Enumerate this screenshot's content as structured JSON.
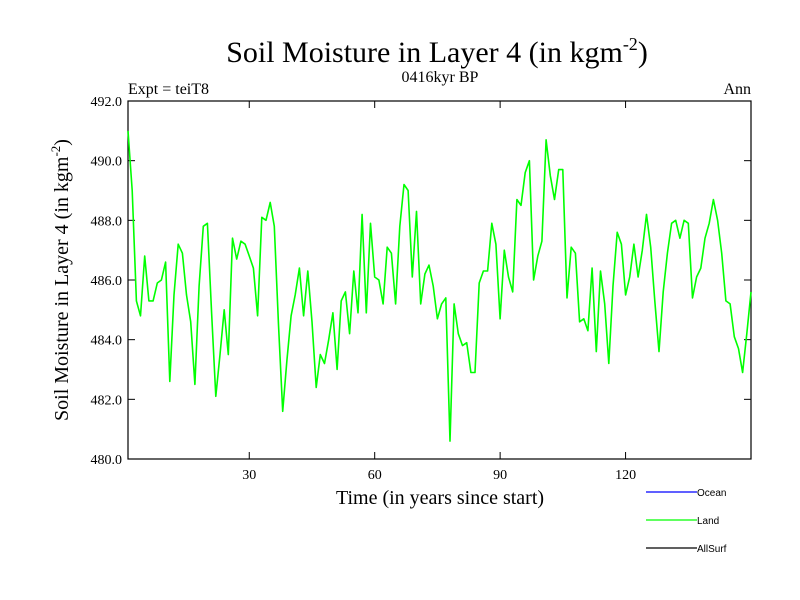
{
  "header": {
    "title_main": "Soil Moisture in Layer 4 (in kgm",
    "title_sup": "-2",
    "title_close": ")",
    "expt": "Expt = teiT8",
    "period": "0416kyr BP",
    "season": "Ann"
  },
  "colors": {
    "ocean": "#0000ff",
    "land": "#00ff00",
    "allsurf": "#000000"
  },
  "chart_data": {
    "type": "line",
    "title": "Soil Moisture in Layer 4 (in kgm-2)",
    "xlabel": "Time (in years since start)",
    "ylabel_main": "Soil Moisture in Layer 4 (in kgm",
    "ylabel_sup": "-2",
    "ylabel_close": ")",
    "xlim": [
      1,
      150
    ],
    "ylim": [
      480.0,
      492.0
    ],
    "x_ticks": [
      30,
      60,
      90,
      120
    ],
    "x_tick_labels": [
      "30",
      "60",
      "90",
      "120"
    ],
    "y_ticks": [
      480,
      482,
      484,
      486,
      488,
      490,
      492
    ],
    "y_tick_labels": [
      "480.0",
      "482.0",
      "484.0",
      "486.0",
      "488.0",
      "490.0",
      "492.0"
    ],
    "legend": [
      "Ocean",
      "Land",
      "AllSurf"
    ],
    "series": [
      {
        "name": "Land",
        "x_start": 1,
        "values": [
          491.0,
          489.0,
          485.3,
          484.8,
          486.8,
          485.3,
          485.3,
          485.9,
          486.0,
          486.6,
          482.6,
          485.5,
          487.2,
          486.9,
          485.5,
          484.6,
          482.5,
          485.8,
          487.8,
          487.9,
          484.9,
          482.1,
          483.5,
          485.0,
          483.5,
          487.4,
          486.7,
          487.3,
          487.2,
          486.8,
          486.4,
          484.8,
          488.1,
          488.0,
          488.6,
          487.8,
          484.5,
          481.6,
          483.3,
          484.8,
          485.5,
          486.4,
          484.8,
          486.3,
          484.6,
          482.4,
          483.5,
          483.2,
          484.0,
          484.9,
          483.0,
          485.3,
          485.6,
          484.2,
          486.3,
          484.9,
          488.2,
          484.9,
          487.9,
          486.1,
          486.0,
          485.2,
          487.1,
          486.9,
          485.2,
          487.8,
          489.2,
          489.0,
          486.1,
          488.3,
          485.2,
          486.2,
          486.5,
          485.8,
          484.7,
          485.2,
          485.4,
          480.6,
          485.2,
          484.2,
          483.8,
          483.9,
          482.9,
          482.9,
          485.9,
          486.3,
          486.3,
          487.9,
          487.2,
          484.7,
          487.0,
          486.1,
          485.6,
          488.7,
          488.5,
          489.6,
          490.0,
          486.0,
          486.8,
          487.3,
          490.7,
          489.5,
          488.7,
          489.7,
          489.7,
          485.4,
          487.1,
          486.9,
          484.6,
          484.7,
          484.3,
          486.4,
          483.6,
          486.3,
          485.2,
          483.2,
          485.8,
          487.6,
          487.2,
          485.5,
          486.1,
          487.2,
          486.1,
          487.0,
          488.2,
          487.1,
          485.3,
          483.6,
          485.6,
          486.9,
          487.9,
          488.0,
          487.4,
          488.0,
          487.9,
          485.4,
          486.1,
          486.4,
          487.4,
          487.9,
          488.7,
          488.0,
          486.9,
          485.3,
          485.2,
          484.1,
          483.7,
          482.9,
          484.2,
          485.6
        ]
      }
    ]
  }
}
